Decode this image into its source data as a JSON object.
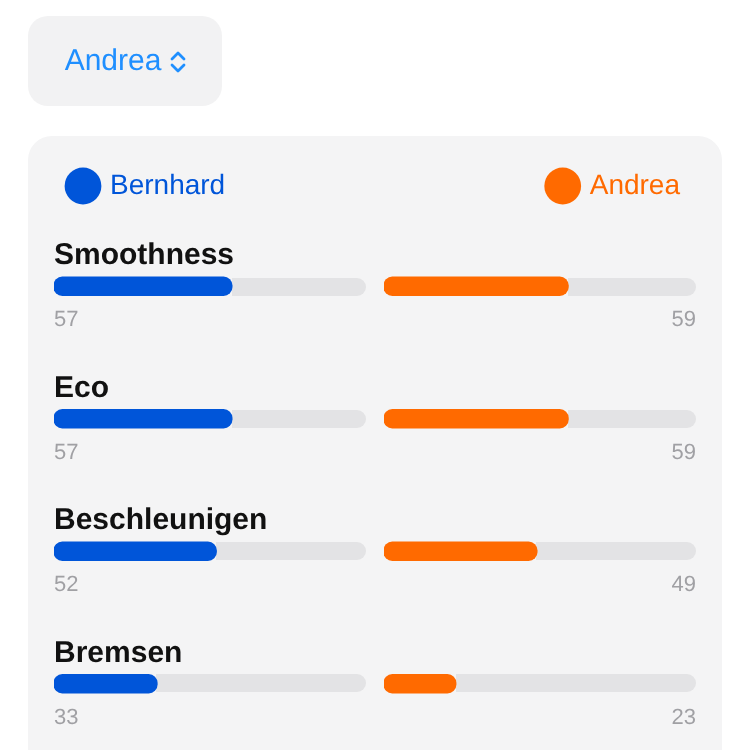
{
  "chart_data": [
    {
      "type": "bar",
      "orientation": "horizontal",
      "categories": [
        "Smoothness",
        "Eco",
        "Beschleunigen",
        "Bremsen"
      ],
      "series": [
        {
          "name": "Bernhard",
          "color": "#0055d9",
          "values": [
            57,
            57,
            52,
            33
          ]
        }
      ],
      "xlim": [
        0,
        100
      ],
      "data_labels": true,
      "legend": "top left",
      "tick_labels": "y",
      "annotations": [
        "Andrea"
      ]
    },
    {
      "type": "bar",
      "orientation": "horizontal",
      "categories": [
        null,
        null,
        null,
        null
      ],
      "series": [
        {
          "name": "Andrea",
          "color": "#ff6a00",
          "values": [
            59,
            59,
            49,
            23
          ]
        }
      ],
      "xlim": [
        0,
        100
      ],
      "data_labels": true,
      "legend": "top right",
      "tick_labels": false
    }
  ]
}
